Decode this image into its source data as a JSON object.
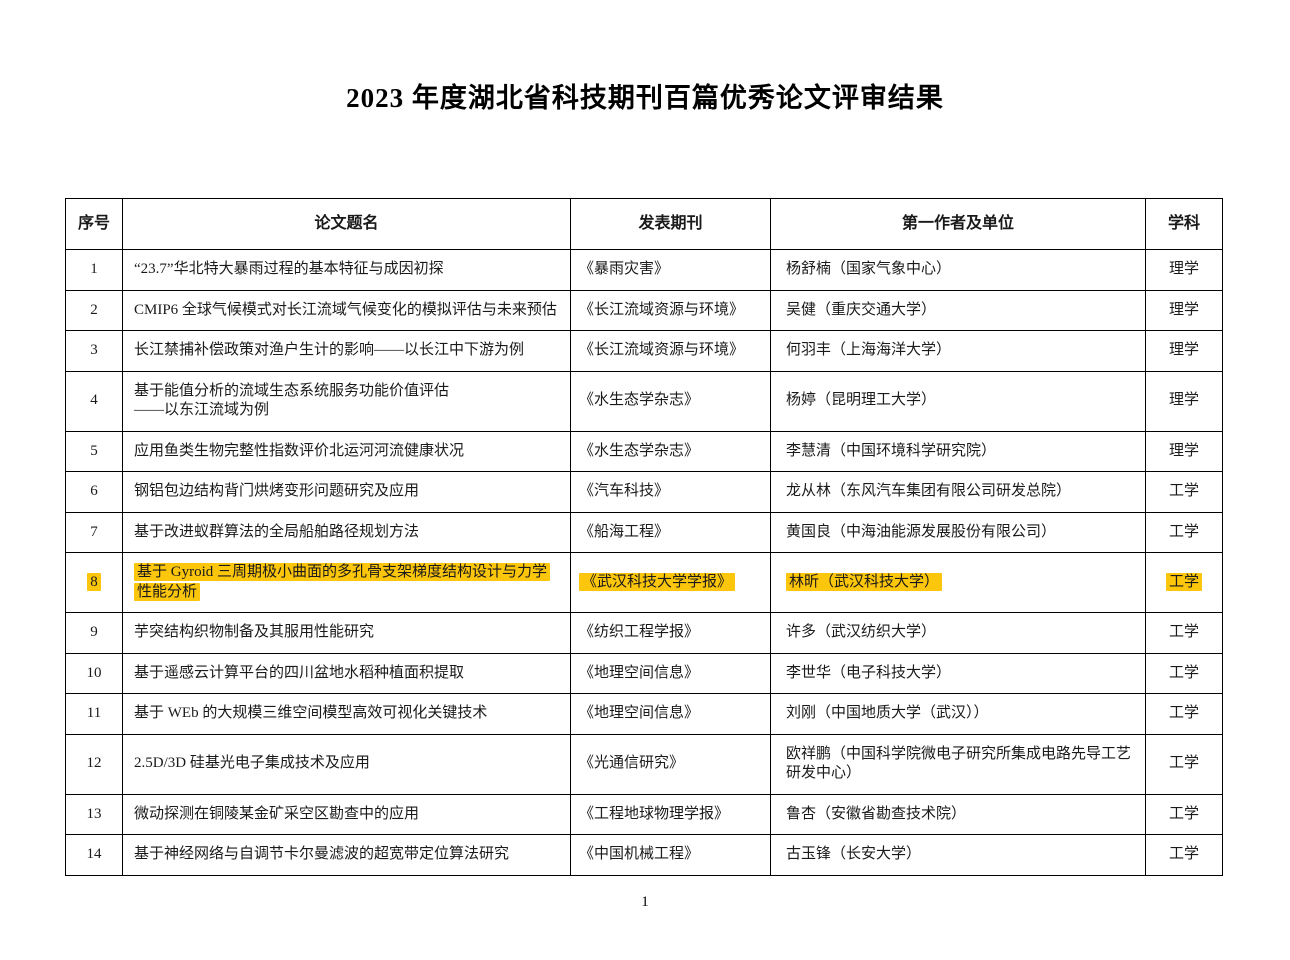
{
  "page": {
    "title": "2023 年度湖北省科技期刊百篇优秀论文评审结果",
    "page_number": "1"
  },
  "table": {
    "highlight_color": "#FCC60D",
    "headers": {
      "no": "序号",
      "title": "论文题名",
      "journal": "发表期刊",
      "author": "第一作者及单位",
      "discipline": "学科"
    },
    "rows": [
      {
        "no": "1",
        "title": "“23.7”华北特大暴雨过程的基本特征与成因初探",
        "journal": "《暴雨灾害》",
        "author": "杨舒楠（国家气象中心）",
        "discipline": "理学",
        "highlighted": false
      },
      {
        "no": "2",
        "title": "CMIP6 全球气候模式对长江流域气候变化的模拟评估与未来预估",
        "journal": "《长江流域资源与环境》",
        "author": "吴健（重庆交通大学）",
        "discipline": "理学",
        "highlighted": false
      },
      {
        "no": "3",
        "title": "长江禁捕补偿政策对渔户生计的影响——以长江中下游为例",
        "journal": "《长江流域资源与环境》",
        "author": "何羽丰（上海海洋大学）",
        "discipline": "理学",
        "highlighted": false
      },
      {
        "no": "4",
        "title": "基于能值分析的流域生态系统服务功能价值评估\n——以东江流域为例",
        "journal": "《水生态学杂志》",
        "author": "杨婷（昆明理工大学）",
        "discipline": "理学",
        "highlighted": false
      },
      {
        "no": "5",
        "title": "应用鱼类生物完整性指数评价北运河河流健康状况",
        "journal": "《水生态学杂志》",
        "author": "李慧清（中国环境科学研究院）",
        "discipline": "理学",
        "highlighted": false
      },
      {
        "no": "6",
        "title": "钢铝包边结构背门烘烤变形问题研究及应用",
        "journal": "《汽车科技》",
        "author": "龙从林（东风汽车集团有限公司研发总院）",
        "discipline": "工学",
        "highlighted": false
      },
      {
        "no": "7",
        "title": "基于改进蚁群算法的全局船舶路径规划方法",
        "journal": "《船海工程》",
        "author": "黄国良（中海油能源发展股份有限公司）",
        "discipline": "工学",
        "highlighted": false
      },
      {
        "no": "8",
        "title": "基于 Gyroid 三周期极小曲面的多孔骨支架梯度结构设计与力学性能分析",
        "journal": "《武汉科技大学学报》",
        "author": "林昕（武汉科技大学）",
        "discipline": "工学",
        "highlighted": true
      },
      {
        "no": "9",
        "title": "芋突结构织物制备及其服用性能研究",
        "journal": "《纺织工程学报》",
        "author": "许多（武汉纺织大学）",
        "discipline": "工学",
        "highlighted": false
      },
      {
        "no": "10",
        "title": "基于遥感云计算平台的四川盆地水稻种植面积提取",
        "journal": "《地理空间信息》",
        "author": "李世华（电子科技大学）",
        "discipline": "工学",
        "highlighted": false
      },
      {
        "no": "11",
        "title": "基于 WEb 的大规模三维空间模型高效可视化关键技术",
        "journal": "《地理空间信息》",
        "author": "刘刚（中国地质大学（武汉））",
        "discipline": "工学",
        "highlighted": false
      },
      {
        "no": "12",
        "title": "2.5D/3D 硅基光电子集成技术及应用",
        "journal": "《光通信研究》",
        "author": "欧祥鹏（中国科学院微电子研究所集成电路先导工艺研发中心）",
        "discipline": "工学",
        "highlighted": false
      },
      {
        "no": "13",
        "title": "微动探测在铜陵某金矿采空区勘查中的应用",
        "journal": "《工程地球物理学报》",
        "author": "鲁杏（安徽省勘查技术院）",
        "discipline": "工学",
        "highlighted": false
      },
      {
        "no": "14",
        "title": "基于神经网络与自调节卡尔曼滤波的超宽带定位算法研究",
        "journal": "《中国机械工程》",
        "author": "古玉锋（长安大学）",
        "discipline": "工学",
        "highlighted": false
      }
    ]
  }
}
